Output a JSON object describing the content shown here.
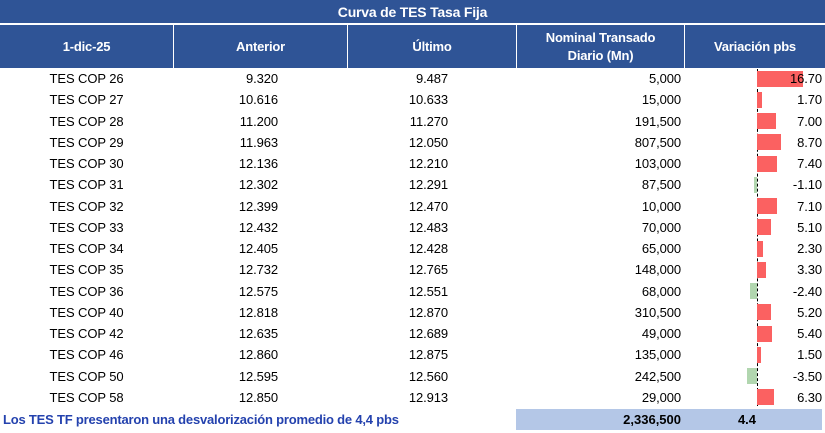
{
  "title": "Curva de TES Tasa Fija",
  "header": {
    "date": "1-dic-25",
    "anterior": "Anterior",
    "ultimo": "Último",
    "nominal": "Nominal Transado Diario (Mn)",
    "variacion": "Variación pbs"
  },
  "rows": [
    {
      "name": "TES COP 26",
      "anterior": "9.320",
      "ultimo": "9.487",
      "nominal": "5,000",
      "variacion": "16.70"
    },
    {
      "name": "TES COP 27",
      "anterior": "10.616",
      "ultimo": "10.633",
      "nominal": "15,000",
      "variacion": "1.70"
    },
    {
      "name": "TES COP 28",
      "anterior": "11.200",
      "ultimo": "11.270",
      "nominal": "191,500",
      "variacion": "7.00"
    },
    {
      "name": "TES COP 29",
      "anterior": "11.963",
      "ultimo": "12.050",
      "nominal": "807,500",
      "variacion": "8.70"
    },
    {
      "name": "TES COP 30",
      "anterior": "12.136",
      "ultimo": "12.210",
      "nominal": "103,000",
      "variacion": "7.40"
    },
    {
      "name": "TES COP 31",
      "anterior": "12.302",
      "ultimo": "12.291",
      "nominal": "87,500",
      "variacion": "-1.10"
    },
    {
      "name": "TES COP 32",
      "anterior": "12.399",
      "ultimo": "12.470",
      "nominal": "10,000",
      "variacion": "7.10"
    },
    {
      "name": "TES COP 33",
      "anterior": "12.432",
      "ultimo": "12.483",
      "nominal": "70,000",
      "variacion": "5.10"
    },
    {
      "name": "TES COP 34",
      "anterior": "12.405",
      "ultimo": "12.428",
      "nominal": "65,000",
      "variacion": "2.30"
    },
    {
      "name": "TES COP 35",
      "anterior": "12.732",
      "ultimo": "12.765",
      "nominal": "148,000",
      "variacion": "3.30"
    },
    {
      "name": "TES COP 36",
      "anterior": "12.575",
      "ultimo": "12.551",
      "nominal": "68,000",
      "variacion": "-2.40"
    },
    {
      "name": "TES COP 40",
      "anterior": "12.818",
      "ultimo": "12.870",
      "nominal": "310,500",
      "variacion": "5.20"
    },
    {
      "name": "TES COP 42",
      "anterior": "12.635",
      "ultimo": "12.689",
      "nominal": "49,000",
      "variacion": "5.40"
    },
    {
      "name": "TES COP 46",
      "anterior": "12.860",
      "ultimo": "12.875",
      "nominal": "135,000",
      "variacion": "1.50"
    },
    {
      "name": "TES COP 50",
      "anterior": "12.595",
      "ultimo": "12.560",
      "nominal": "242,500",
      "variacion": "-3.50"
    },
    {
      "name": "TES COP 58",
      "anterior": "12.850",
      "ultimo": "12.913",
      "nominal": "29,000",
      "variacion": "6.30"
    }
  ],
  "footer": {
    "note": "Los TES TF presentaron una desvalorización promedio de 4,4 pbs",
    "total_nominal": "2,336,500",
    "avg_variacion": "4.4"
  },
  "colors": {
    "header_bg": "#2F5496",
    "header_text": "#FFFFFF",
    "note_text": "#2442AE",
    "total_bg": "#B4C7E7",
    "positive_bar": "#FB6161",
    "negative_bar": "#B1D6AF",
    "axis_line": "#000000"
  },
  "chart_data": {
    "type": "table",
    "title": "Curva de TES Tasa Fija",
    "date_label": "1-dic-25",
    "columns": [
      "1-dic-25",
      "Anterior",
      "Último",
      "Nominal Transado Diario (Mn)",
      "Variación pbs"
    ],
    "bonds": [
      "TES COP 26",
      "TES COP 27",
      "TES COP 28",
      "TES COP 29",
      "TES COP 30",
      "TES COP 31",
      "TES COP 32",
      "TES COP 33",
      "TES COP 34",
      "TES COP 35",
      "TES COP 36",
      "TES COP 40",
      "TES COP 42",
      "TES COP 46",
      "TES COP 50",
      "TES COP 58"
    ],
    "anterior": [
      9.32,
      10.616,
      11.2,
      11.963,
      12.136,
      12.302,
      12.399,
      12.432,
      12.405,
      12.732,
      12.575,
      12.818,
      12.635,
      12.86,
      12.595,
      12.85
    ],
    "ultimo": [
      9.487,
      10.633,
      11.27,
      12.05,
      12.21,
      12.291,
      12.47,
      12.483,
      12.428,
      12.765,
      12.551,
      12.87,
      12.689,
      12.875,
      12.56,
      12.913
    ],
    "nominal_mn": [
      5000,
      15000,
      191500,
      807500,
      103000,
      87500,
      10000,
      70000,
      65000,
      148000,
      68000,
      310500,
      49000,
      135000,
      242500,
      29000
    ],
    "variacion_pbs": [
      16.7,
      1.7,
      7.0,
      8.7,
      7.4,
      -1.1,
      7.1,
      5.1,
      2.3,
      3.3,
      -2.4,
      5.2,
      5.4,
      1.5,
      -3.5,
      6.3
    ],
    "total_nominal_mn": 2336500,
    "avg_variacion_pbs": 4.4,
    "embedded_bars": {
      "column": "Variación pbs",
      "positive_color": "#FB6161",
      "negative_color": "#B1D6AF",
      "zero_axis": "dashed-black"
    }
  }
}
